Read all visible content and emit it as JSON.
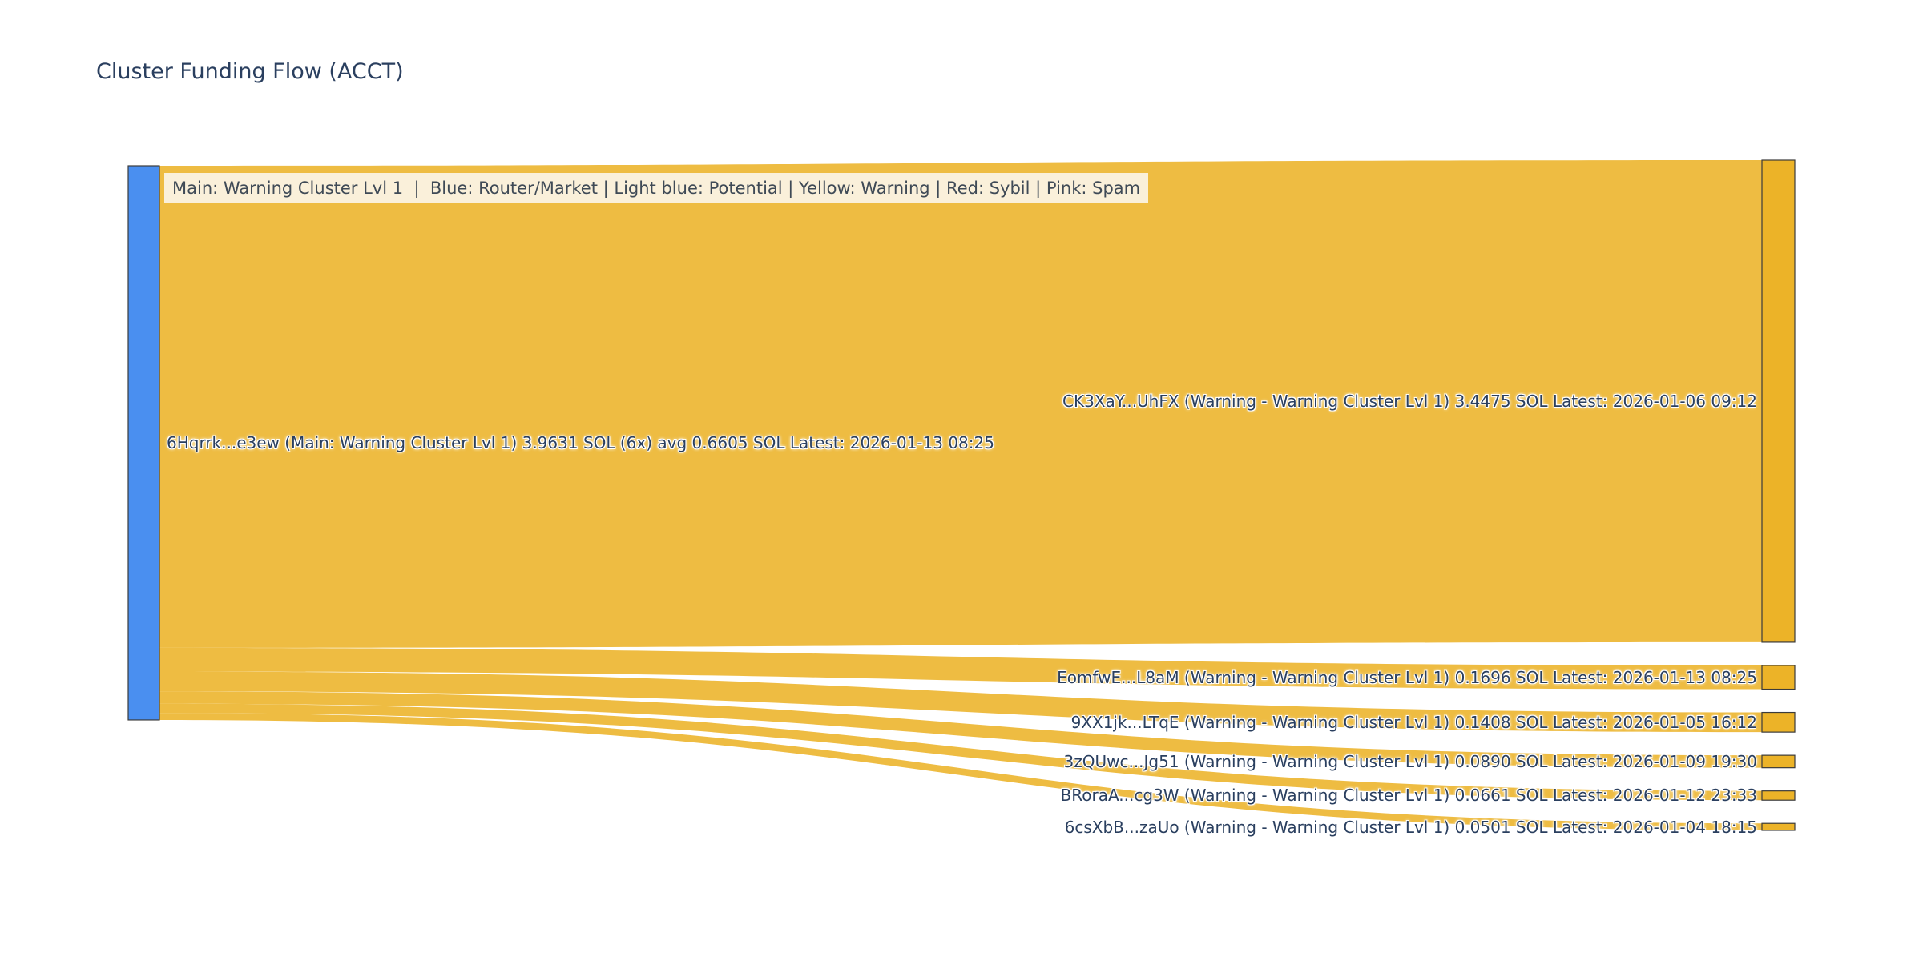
{
  "title": "Cluster Funding Flow (ACCT)",
  "legend": "Main: Warning Cluster Lvl 1  |  Blue: Router/Market | Light blue: Potential | Yellow: Warning | Red: Sybil | Pink: Spam",
  "chart_data": {
    "type": "sankey",
    "title": "Cluster Funding Flow (ACCT)",
    "unit": "SOL",
    "source": {
      "address": "6Hqrrk...e3ew",
      "category": "Main: Warning Cluster Lvl 1",
      "total_sol": 3.9631,
      "tx_count": "6x",
      "avg_sol": 0.6605,
      "latest": "2026-01-13 08:25",
      "label": "6Hqrrk...e3ew (Main: Warning Cluster Lvl 1) 3.9631 SOL (6x) avg 0.6605 SOL Latest: 2026-01-13 08:25"
    },
    "targets": [
      {
        "address": "CK3XaY...UhFX",
        "category": "Warning - Warning Cluster Lvl 1",
        "value": 3.4475,
        "latest": "2026-01-06 09:12",
        "label": "CK3XaY...UhFX (Warning - Warning Cluster Lvl 1) 3.4475 SOL Latest: 2026-01-06 09:12"
      },
      {
        "address": "EomfwE...L8aM",
        "category": "Warning - Warning Cluster Lvl 1",
        "value": 0.1696,
        "latest": "2026-01-13 08:25",
        "label": "EomfwE...L8aM (Warning - Warning Cluster Lvl 1) 0.1696 SOL Latest: 2026-01-13 08:25"
      },
      {
        "address": "9XX1jk...LTqE",
        "category": "Warning - Warning Cluster Lvl 1",
        "value": 0.1408,
        "latest": "2026-01-05 16:12",
        "label": "9XX1jk...LTqE (Warning - Warning Cluster Lvl 1) 0.1408 SOL Latest: 2026-01-05 16:12"
      },
      {
        "address": "3zQUwc...Jg51",
        "category": "Warning - Warning Cluster Lvl 1",
        "value": 0.089,
        "latest": "2026-01-09 19:30",
        "label": "3zQUwc...Jg51 (Warning - Warning Cluster Lvl 1) 0.0890 SOL Latest: 2026-01-09 19:30"
      },
      {
        "address": "BRoraA...cg3W",
        "category": "Warning - Warning Cluster Lvl 1",
        "value": 0.0661,
        "latest": "2026-01-12 23:33",
        "label": "BRoraA...cg3W (Warning - Warning Cluster Lvl 1) 0.0661 SOL Latest: 2026-01-12 23:33"
      },
      {
        "address": "6csXbB...zaUo",
        "category": "Warning - Warning Cluster Lvl 1",
        "value": 0.0501,
        "latest": "2026-01-04 18:15",
        "label": "6csXbB...zaUo (Warning - Warning Cluster Lvl 1) 0.0501 SOL Latest: 2026-01-04 18:15"
      }
    ],
    "colors": {
      "source_node": "#4a8ff0",
      "target_node": "#ecb328",
      "flow": "#ecb328",
      "node_border": "#3b3b3b",
      "title_text": "#2a3f5f",
      "label_text": "#2a3f5f",
      "legend_bg": "#faf0da",
      "legend_text": "#3f4a56"
    }
  }
}
